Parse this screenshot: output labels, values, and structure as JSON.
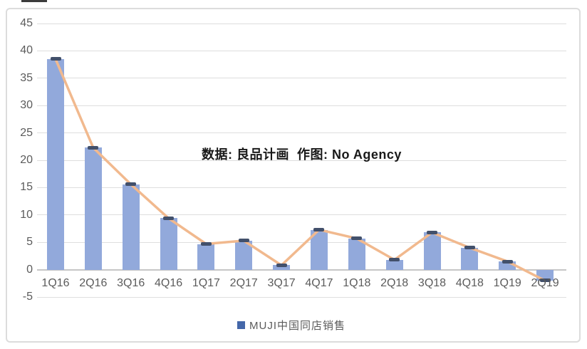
{
  "annotation": {
    "text": "数据: 良品计画  作图: No Agency"
  },
  "legend": {
    "label": "MUJI中国同店销售"
  },
  "chart_data": {
    "type": "bar",
    "subtype": "bar with line overlay of the same series (combo chart)",
    "title": "",
    "categories": [
      "1Q16",
      "2Q16",
      "3Q16",
      "4Q16",
      "1Q17",
      "2Q17",
      "3Q17",
      "4Q17",
      "1Q18",
      "2Q18",
      "3Q18",
      "4Q18",
      "1Q19",
      "2Q19"
    ],
    "values": [
      38.5,
      22.3,
      15.6,
      9.4,
      4.7,
      5.3,
      0.8,
      7.3,
      5.7,
      1.8,
      6.8,
      4.0,
      1.5,
      -2.0
    ],
    "series": [
      {
        "name": "MUJI中国同店销售",
        "type": "bar",
        "values": [
          38.5,
          22.3,
          15.6,
          9.4,
          4.7,
          5.3,
          0.8,
          7.3,
          5.7,
          1.8,
          6.8,
          4.0,
          1.5,
          -2.0
        ]
      },
      {
        "name": "MUJI中国同店销售",
        "type": "line",
        "values": [
          38.5,
          22.3,
          15.6,
          9.4,
          4.7,
          5.3,
          0.8,
          7.3,
          5.7,
          1.8,
          6.8,
          4.0,
          1.5,
          -2.0
        ]
      }
    ],
    "xlabel": "",
    "ylabel": "",
    "ylim": [
      -5,
      45
    ],
    "yticks": [
      45,
      40,
      35,
      30,
      25,
      20,
      15,
      10,
      5,
      0,
      -5
    ],
    "grid": true,
    "legend_position": "bottom",
    "annotation": "数据: 良品计画  作图: No Agency",
    "colors": {
      "bar": "#92A9DB",
      "line": "#F1B98E",
      "marker": "#42506B",
      "legend_marker": "#4467A9",
      "grid": "#DEDEDE",
      "zero_line": "#C6C6C6",
      "axis_text": "#5B5B5B",
      "annotation_text": "#191919",
      "card_border": "#DCDCDC"
    }
  }
}
